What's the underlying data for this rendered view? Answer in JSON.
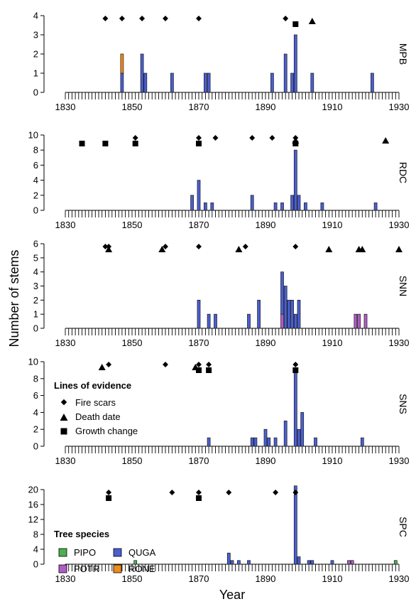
{
  "figure": {
    "y_axis_label": "Number of stems",
    "x_axis_label": "Year",
    "evidence_legend": {
      "title": "Lines of evidence",
      "items": [
        {
          "name": "Fire scars",
          "marker": "diamond"
        },
        {
          "name": "Death date",
          "marker": "triangle"
        },
        {
          "name": "Growth change",
          "marker": "square"
        }
      ]
    },
    "species_legend": {
      "title": "Tree species",
      "items": [
        {
          "name": "PIPO",
          "color": "#4caf50"
        },
        {
          "name": "POTR",
          "color": "#b05cc6"
        },
        {
          "name": "QUGA",
          "color": "#4a5fd0"
        },
        {
          "name": "RONE",
          "color": "#f08a1a"
        }
      ]
    },
    "colors": {
      "PIPO": "#4caf50",
      "POTR": "#b05cc6",
      "QUGA": "#4a5fd0",
      "RONE": "#f08a1a"
    }
  },
  "chart_data": [
    {
      "type": "bar",
      "site": "MPB",
      "xlabel": "Year",
      "ylabel": "Number of stems",
      "xlim": [
        1830,
        1930
      ],
      "x_ticks": [
        1830,
        1850,
        1870,
        1890,
        1910,
        1930
      ],
      "ylim": [
        0,
        4
      ],
      "y_ticks": [
        0,
        1,
        2,
        3,
        4
      ],
      "bars": [
        {
          "year": 1847,
          "QUGA": 1,
          "RONE": 1
        },
        {
          "year": 1853,
          "QUGA": 2
        },
        {
          "year": 1854,
          "QUGA": 1
        },
        {
          "year": 1862,
          "QUGA": 1
        },
        {
          "year": 1872,
          "QUGA": 1
        },
        {
          "year": 1873,
          "QUGA": 1
        },
        {
          "year": 1892,
          "QUGA": 1
        },
        {
          "year": 1896,
          "QUGA": 2
        },
        {
          "year": 1898,
          "QUGA": 1
        },
        {
          "year": 1899,
          "QUGA": 3
        },
        {
          "year": 1904,
          "QUGA": 1
        },
        {
          "year": 1922,
          "QUGA": 1
        }
      ],
      "fire_scars": [
        1842,
        1847,
        1853,
        1860,
        1870,
        1896
      ],
      "death_dates": [
        1904
      ],
      "growth_changes": [
        1899
      ]
    },
    {
      "type": "bar",
      "site": "RDC",
      "xlabel": "Year",
      "ylabel": "Number of stems",
      "xlim": [
        1830,
        1930
      ],
      "x_ticks": [
        1830,
        1850,
        1870,
        1890,
        1910,
        1930
      ],
      "ylim": [
        0,
        10
      ],
      "y_ticks": [
        0,
        2,
        4,
        6,
        8,
        10
      ],
      "bars": [
        {
          "year": 1868,
          "QUGA": 2
        },
        {
          "year": 1870,
          "QUGA": 4
        },
        {
          "year": 1872,
          "QUGA": 1
        },
        {
          "year": 1874,
          "QUGA": 1
        },
        {
          "year": 1886,
          "QUGA": 2
        },
        {
          "year": 1893,
          "QUGA": 1
        },
        {
          "year": 1895,
          "QUGA": 1
        },
        {
          "year": 1898,
          "QUGA": 2
        },
        {
          "year": 1899,
          "QUGA": 8
        },
        {
          "year": 1900,
          "QUGA": 2
        },
        {
          "year": 1902,
          "QUGA": 1
        },
        {
          "year": 1907,
          "QUGA": 1
        },
        {
          "year": 1923,
          "QUGA": 1
        }
      ],
      "fire_scars": [
        1851,
        1870,
        1875,
        1886,
        1892,
        1899
      ],
      "death_dates": [
        1899,
        1926
      ],
      "growth_changes": [
        1835,
        1842,
        1851,
        1870,
        1899
      ]
    },
    {
      "type": "bar",
      "site": "SNN",
      "xlabel": "Year",
      "ylabel": "Number of stems",
      "xlim": [
        1830,
        1930
      ],
      "x_ticks": [
        1830,
        1850,
        1870,
        1890,
        1910,
        1930
      ],
      "ylim": [
        0,
        6
      ],
      "y_ticks": [
        0,
        1,
        2,
        3,
        4,
        5,
        6
      ],
      "bars": [
        {
          "year": 1870,
          "QUGA": 2
        },
        {
          "year": 1873,
          "QUGA": 1
        },
        {
          "year": 1875,
          "QUGA": 1
        },
        {
          "year": 1885,
          "QUGA": 1
        },
        {
          "year": 1888,
          "QUGA": 2
        },
        {
          "year": 1895,
          "QUGA": 3,
          "POTR": 1
        },
        {
          "year": 1896,
          "QUGA": 3
        },
        {
          "year": 1897,
          "QUGA": 2
        },
        {
          "year": 1898,
          "QUGA": 2
        },
        {
          "year": 1899,
          "QUGA": 1
        },
        {
          "year": 1900,
          "QUGA": 2
        },
        {
          "year": 1917,
          "POTR": 1
        },
        {
          "year": 1918,
          "POTR": 1
        },
        {
          "year": 1920,
          "POTR": 1
        }
      ],
      "fire_scars": [
        1842,
        1843,
        1860,
        1870,
        1884,
        1899
      ],
      "death_dates": [
        1843,
        1859,
        1882,
        1909,
        1918,
        1919,
        1930
      ],
      "growth_changes": []
    },
    {
      "type": "bar",
      "site": "SNS",
      "xlabel": "Year",
      "ylabel": "Number of stems",
      "xlim": [
        1830,
        1930
      ],
      "x_ticks": [
        1830,
        1850,
        1870,
        1890,
        1910,
        1930
      ],
      "ylim": [
        0,
        10
      ],
      "y_ticks": [
        0,
        2,
        4,
        6,
        8,
        10
      ],
      "bars": [
        {
          "year": 1873,
          "QUGA": 1
        },
        {
          "year": 1886,
          "QUGA": 1
        },
        {
          "year": 1887,
          "QUGA": 1
        },
        {
          "year": 1890,
          "QUGA": 2
        },
        {
          "year": 1891,
          "QUGA": 1
        },
        {
          "year": 1893,
          "QUGA": 1
        },
        {
          "year": 1896,
          "QUGA": 3
        },
        {
          "year": 1899,
          "QUGA": 9
        },
        {
          "year": 1900,
          "QUGA": 2
        },
        {
          "year": 1901,
          "QUGA": 4
        },
        {
          "year": 1905,
          "QUGA": 1
        },
        {
          "year": 1919,
          "QUGA": 1
        }
      ],
      "fire_scars": [
        1843,
        1860,
        1870,
        1873,
        1899
      ],
      "death_dates": [
        1841,
        1869
      ],
      "growth_changes": [
        1870,
        1873,
        1899
      ]
    },
    {
      "type": "bar",
      "site": "SPC",
      "xlabel": "Year",
      "ylabel": "Number of stems",
      "xlim": [
        1830,
        1930
      ],
      "x_ticks": [
        1830,
        1850,
        1870,
        1890,
        1910,
        1930
      ],
      "ylim": [
        0,
        20
      ],
      "y_ticks": [
        0,
        4,
        8,
        12,
        16,
        20
      ],
      "bars": [
        {
          "year": 1851,
          "PIPO": 1
        },
        {
          "year": 1879,
          "QUGA": 3
        },
        {
          "year": 1880,
          "QUGA": 1
        },
        {
          "year": 1882,
          "QUGA": 1
        },
        {
          "year": 1885,
          "QUGA": 1
        },
        {
          "year": 1899,
          "QUGA": 21
        },
        {
          "year": 1900,
          "QUGA": 2
        },
        {
          "year": 1903,
          "QUGA": 1
        },
        {
          "year": 1904,
          "QUGA": 1
        },
        {
          "year": 1910,
          "QUGA": 1
        },
        {
          "year": 1915,
          "POTR": 1
        },
        {
          "year": 1916,
          "POTR": 1
        },
        {
          "year": 1929,
          "PIPO": 1
        }
      ],
      "fire_scars": [
        1843,
        1862,
        1870,
        1879,
        1893,
        1899
      ],
      "death_dates": [],
      "growth_changes": [
        1843,
        1870
      ]
    }
  ]
}
